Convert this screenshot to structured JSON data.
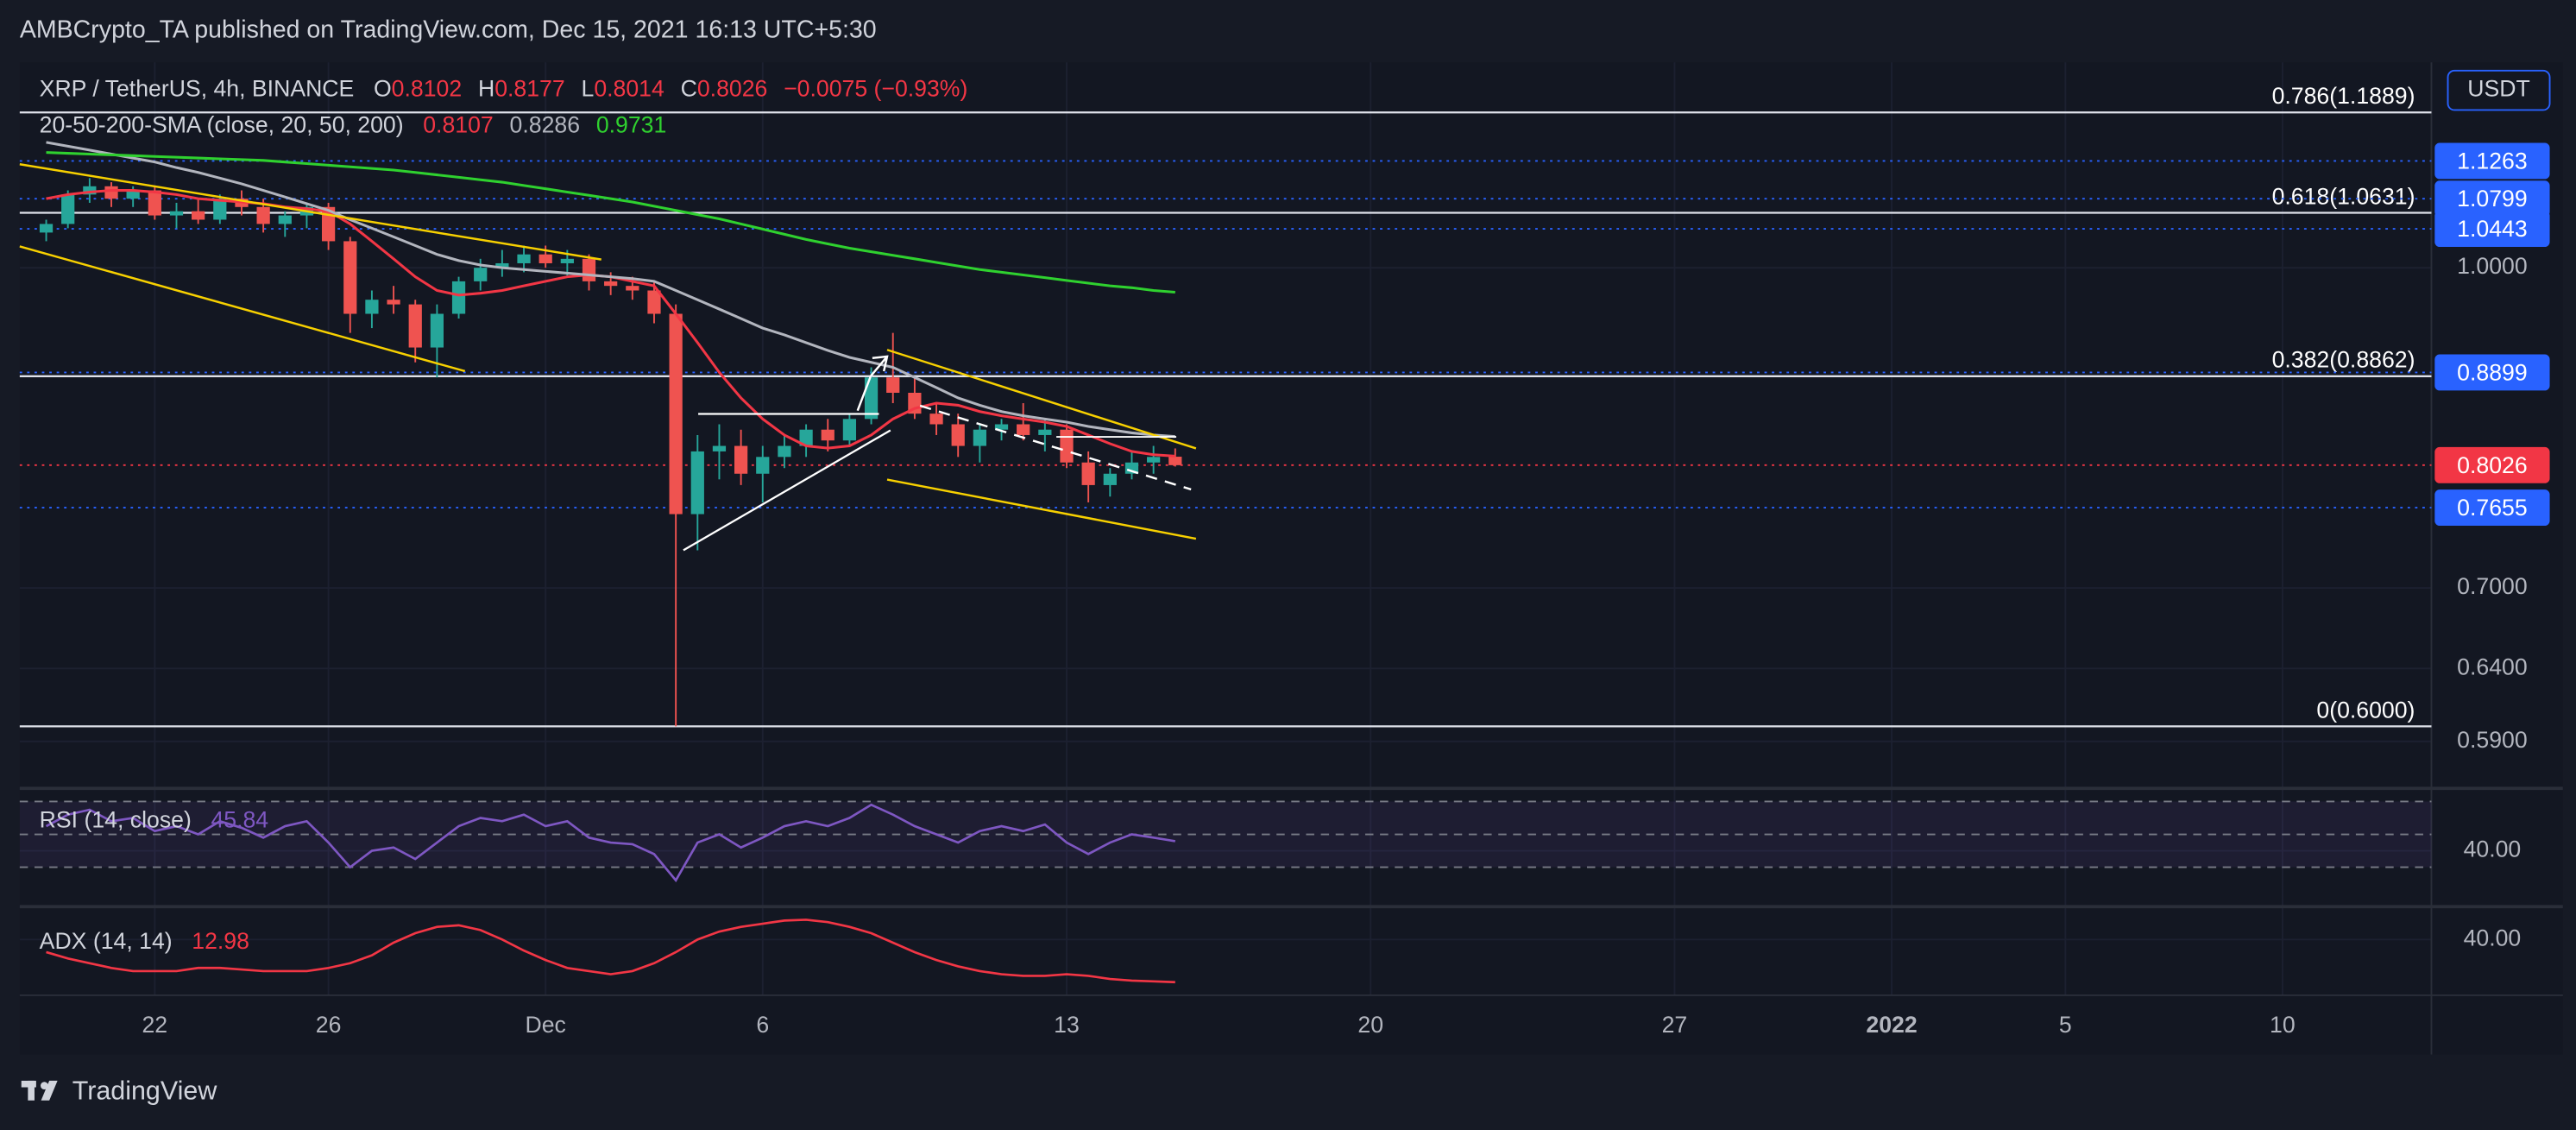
{
  "header": {
    "text": "AMBCrypto_TA published on TradingView.com, Dec 15, 2021 16:13 UTC+5:30"
  },
  "chart_data": [
    {
      "type": "candlestick",
      "title": "XRP / TetherUS, 4h, BINANCE",
      "ohlc": [
        {
          "label": "O",
          "value": 0.8102
        },
        {
          "label": "H",
          "value": 0.8177
        },
        {
          "label": "L",
          "value": 0.8014
        },
        {
          "label": "C",
          "value": 0.8026
        }
      ],
      "change": "−0.0075 (−0.93%)",
      "indicator": "20-50-200-SMA (close, 20, 50, 200)",
      "currency": "USDT",
      "log_scale": true,
      "up_color": "#26a69a",
      "down_color": "#ef5350",
      "x": [
        -11.5,
        -11,
        -10.5,
        -10,
        -9.5,
        -9,
        -8.5,
        -8,
        -7.5,
        -7,
        -6.5,
        -6,
        -5.5,
        -5,
        -4.5,
        -4,
        -3.5,
        -3,
        -2.5,
        -2,
        -1.5,
        -1,
        -0.5,
        0,
        0.5,
        1,
        1.5,
        2,
        2.5,
        3,
        3.5,
        4,
        4.5,
        5,
        5.5,
        6,
        6.5,
        7,
        7.5,
        8,
        8.5,
        9,
        9.5,
        10,
        10.5,
        11,
        11.5,
        12,
        12.5,
        13,
        13.5,
        14,
        14.5
      ],
      "open": [
        1.04,
        1.05,
        1.085,
        1.095,
        1.08,
        1.09,
        1.06,
        1.065,
        1.055,
        1.08,
        1.07,
        1.05,
        1.06,
        1.07,
        1.03,
        0.95,
        0.965,
        0.96,
        0.915,
        0.95,
        0.985,
        1,
        1.005,
        1.015,
        1.005,
        1.01,
        0.985,
        0.98,
        0.975,
        0.95,
        0.76,
        0.815,
        0.82,
        0.795,
        0.81,
        0.82,
        0.835,
        0.825,
        0.845,
        0.885,
        0.87,
        0.85,
        0.84,
        0.82,
        0.835,
        0.84,
        0.83,
        0.835,
        0.805,
        0.785,
        0.795,
        0.805,
        0.8102
      ],
      "high": [
        1.055,
        1.09,
        1.105,
        1.1,
        1.095,
        1.095,
        1.075,
        1.08,
        1.085,
        1.09,
        1.08,
        1.065,
        1.075,
        1.075,
        1.035,
        0.975,
        0.98,
        0.965,
        0.96,
        0.99,
        1.01,
        1.02,
        1.025,
        1.025,
        1.02,
        1.015,
        0.995,
        0.99,
        0.985,
        0.96,
        0.83,
        0.84,
        0.835,
        0.82,
        0.83,
        0.84,
        0.845,
        0.85,
        0.895,
        0.93,
        0.885,
        0.86,
        0.85,
        0.84,
        0.845,
        0.86,
        0.845,
        0.84,
        0.815,
        0.8,
        0.815,
        0.82,
        0.8177
      ],
      "low": [
        1.03,
        1.045,
        1.075,
        1.07,
        1.07,
        1.055,
        1.045,
        1.05,
        1.05,
        1.06,
        1.04,
        1.035,
        1.045,
        1.02,
        0.93,
        0.935,
        0.95,
        0.9,
        0.885,
        0.945,
        0.975,
        0.99,
        0.995,
        1,
        0.99,
        0.975,
        0.97,
        0.965,
        0.94,
        0.6,
        0.73,
        0.79,
        0.785,
        0.77,
        0.8,
        0.81,
        0.815,
        0.82,
        0.84,
        0.86,
        0.845,
        0.83,
        0.81,
        0.805,
        0.825,
        0.825,
        0.815,
        0.8,
        0.77,
        0.775,
        0.79,
        0.795,
        0.8014
      ],
      "close": [
        1.05,
        1.085,
        1.095,
        1.08,
        1.09,
        1.06,
        1.065,
        1.055,
        1.08,
        1.07,
        1.05,
        1.06,
        1.07,
        1.03,
        0.95,
        0.965,
        0.96,
        0.915,
        0.95,
        0.985,
        1,
        1.005,
        1.015,
        1.005,
        1.01,
        0.985,
        0.98,
        0.975,
        0.95,
        0.76,
        0.815,
        0.82,
        0.795,
        0.81,
        0.82,
        0.835,
        0.825,
        0.845,
        0.885,
        0.87,
        0.85,
        0.84,
        0.82,
        0.835,
        0.84,
        0.83,
        0.835,
        0.805,
        0.785,
        0.795,
        0.805,
        0.81,
        0.8026
      ],
      "series": [
        {
          "color": "#f23645",
          "last": 0.8107,
          "values": [
            1.08,
            1.085,
            1.088,
            1.09,
            1.09,
            1.088,
            1.085,
            1.08,
            1.078,
            1.076,
            1.074,
            1.07,
            1.068,
            1.065,
            1.05,
            1.03,
            1.01,
            0.99,
            0.975,
            0.97,
            0.972,
            0.975,
            0.98,
            0.985,
            0.99,
            0.992,
            0.99,
            0.985,
            0.98,
            0.95,
            0.92,
            0.89,
            0.865,
            0.845,
            0.83,
            0.82,
            0.818,
            0.82,
            0.83,
            0.845,
            0.855,
            0.86,
            0.858,
            0.852,
            0.848,
            0.845,
            0.842,
            0.838,
            0.83,
            0.822,
            0.815,
            0.812,
            0.8107
          ]
        },
        {
          "color": "#b2b5be",
          "last": 0.8286,
          "values": [
            1.15,
            1.145,
            1.14,
            1.135,
            1.13,
            1.125,
            1.118,
            1.112,
            1.105,
            1.098,
            1.09,
            1.082,
            1.074,
            1.066,
            1.055,
            1.045,
            1.035,
            1.025,
            1.015,
            1.008,
            1.003,
            1,
            0.998,
            0.996,
            0.994,
            0.992,
            0.99,
            0.988,
            0.985,
            0.975,
            0.965,
            0.955,
            0.945,
            0.935,
            0.928,
            0.92,
            0.912,
            0.905,
            0.9,
            0.895,
            0.885,
            0.875,
            0.865,
            0.858,
            0.852,
            0.848,
            0.845,
            0.842,
            0.838,
            0.835,
            0.832,
            0.83,
            0.8286
          ]
        },
        {
          "color": "#2fd12f",
          "last": 0.9731,
          "values": [
            1.137,
            1.136,
            1.135,
            1.134,
            1.133,
            1.132,
            1.131,
            1.13,
            1.129,
            1.128,
            1.127,
            1.125,
            1.123,
            1.121,
            1.119,
            1.117,
            1.115,
            1.112,
            1.109,
            1.106,
            1.103,
            1.1,
            1.096,
            1.092,
            1.088,
            1.084,
            1.08,
            1.076,
            1.071,
            1.066,
            1.061,
            1.056,
            1.05,
            1.044,
            1.038,
            1.032,
            1.027,
            1.022,
            1.018,
            1.014,
            1.01,
            1.006,
            1.002,
            0.998,
            0.995,
            0.992,
            0.989,
            0.986,
            0.983,
            0.98,
            0.978,
            0.975,
            0.9731
          ]
        }
      ],
      "fib_levels": [
        {
          "label": "0.786(1.1889)",
          "value": 1.1889
        },
        {
          "label": "0.618(1.0631)",
          "value": 1.0631
        },
        {
          "label": "0.382(0.8862)",
          "value": 0.8862
        },
        {
          "label": "0(0.6000)",
          "value": 0.6
        }
      ],
      "price_labels": [
        {
          "value": 1.1263,
          "color": "#2962ff"
        },
        {
          "value": 1.0799,
          "color": "#2962ff"
        },
        {
          "value": 1.0443,
          "color": "#2962ff"
        },
        {
          "value": 0.8899,
          "color": "#2962ff"
        },
        {
          "value": 0.8026,
          "color": "#f23645"
        },
        {
          "value": 0.7655,
          "color": "#2962ff"
        }
      ],
      "xlim": [
        -12.11,
        43.43
      ],
      "xticks": [
        {
          "value": -9,
          "label": "22"
        },
        {
          "value": -5,
          "label": "26"
        },
        {
          "value": 0,
          "label": "Dec"
        },
        {
          "value": 5,
          "label": "6"
        },
        {
          "value": 12,
          "label": "13"
        },
        {
          "value": 19,
          "label": "20"
        },
        {
          "value": 26,
          "label": "27"
        },
        {
          "value": 31,
          "label": "2022"
        },
        {
          "value": 35,
          "label": "5"
        },
        {
          "value": 40,
          "label": "10"
        }
      ],
      "ylim": [
        0.562,
        1.257
      ],
      "yticks": [
        {
          "value": 0.59,
          "label": "0.5900"
        },
        {
          "value": 0.64,
          "label": "0.6400"
        },
        {
          "value": 0.7,
          "label": "0.7000"
        },
        {
          "value": 1,
          "label": "1.0000"
        }
      ]
    },
    {
      "type": "line",
      "title": "RSI (14, close)",
      "last": 45.84,
      "color": "#7e57c2",
      "x": [
        -11.5,
        -11,
        -10.5,
        -10,
        -9.5,
        -9,
        -8.5,
        -8,
        -7.5,
        -7,
        -6.5,
        -6,
        -5.5,
        -5,
        -4.5,
        -4,
        -3.5,
        -3,
        -2.5,
        -2,
        -1.5,
        -1,
        -0.5,
        0,
        0.5,
        1,
        1.5,
        2,
        2.5,
        3,
        3.5,
        4,
        4.5,
        5,
        5.5,
        6,
        6.5,
        7,
        7.5,
        8,
        8.5,
        9,
        9.5,
        10,
        10.5,
        11,
        11.5,
        12,
        12.5,
        13,
        13.5,
        14,
        14.5
      ],
      "values": [
        55,
        62,
        65,
        58,
        60,
        52,
        55,
        50,
        58,
        54,
        48,
        55,
        58,
        45,
        30,
        40,
        42,
        35,
        45,
        55,
        60,
        58,
        62,
        55,
        58,
        48,
        45,
        44,
        38,
        22,
        45,
        50,
        42,
        48,
        55,
        58,
        55,
        60,
        68,
        62,
        55,
        50,
        45,
        52,
        55,
        52,
        56,
        45,
        38,
        45,
        50,
        48,
        45.84
      ],
      "levels": [
        70,
        50,
        30
      ],
      "ylim": [
        8,
        76
      ],
      "yticks": [
        {
          "value": 40,
          "label": "40.00"
        }
      ]
    },
    {
      "type": "line",
      "title": "ADX (14, 14)",
      "last": 12.98,
      "color": "#f23645",
      "x": [
        -11.5,
        -11,
        -10.5,
        -10,
        -9.5,
        -9,
        -8.5,
        -8,
        -7.5,
        -7,
        -6.5,
        -6,
        -5.5,
        -5,
        -4.5,
        -4,
        -3.5,
        -3,
        -2.5,
        -2,
        -1.5,
        -1,
        -0.5,
        0,
        0.5,
        1,
        1.5,
        2,
        2.5,
        3,
        3.5,
        4,
        4.5,
        5,
        5.5,
        6,
        6.5,
        7,
        7.5,
        8,
        8.5,
        9,
        9.5,
        10,
        10.5,
        11,
        11.5,
        12,
        12.5,
        13,
        13.5,
        14,
        14.5
      ],
      "values": [
        32,
        28,
        25,
        22,
        20,
        20,
        20,
        22,
        22,
        21,
        20,
        20,
        20,
        22,
        25,
        30,
        38,
        44,
        48,
        49,
        46,
        40,
        33,
        27,
        22,
        20,
        18,
        20,
        25,
        32,
        40,
        45,
        48,
        50,
        52,
        52.5,
        51,
        48,
        44,
        38,
        32,
        27,
        23,
        20,
        18,
        17,
        17,
        18,
        17,
        15,
        14,
        13.5,
        12.98
      ],
      "ylim": [
        5.7,
        57.7
      ],
      "yticks": [
        {
          "value": 40,
          "label": "40.00"
        }
      ]
    }
  ],
  "footer": {
    "brand": "TradingView"
  }
}
